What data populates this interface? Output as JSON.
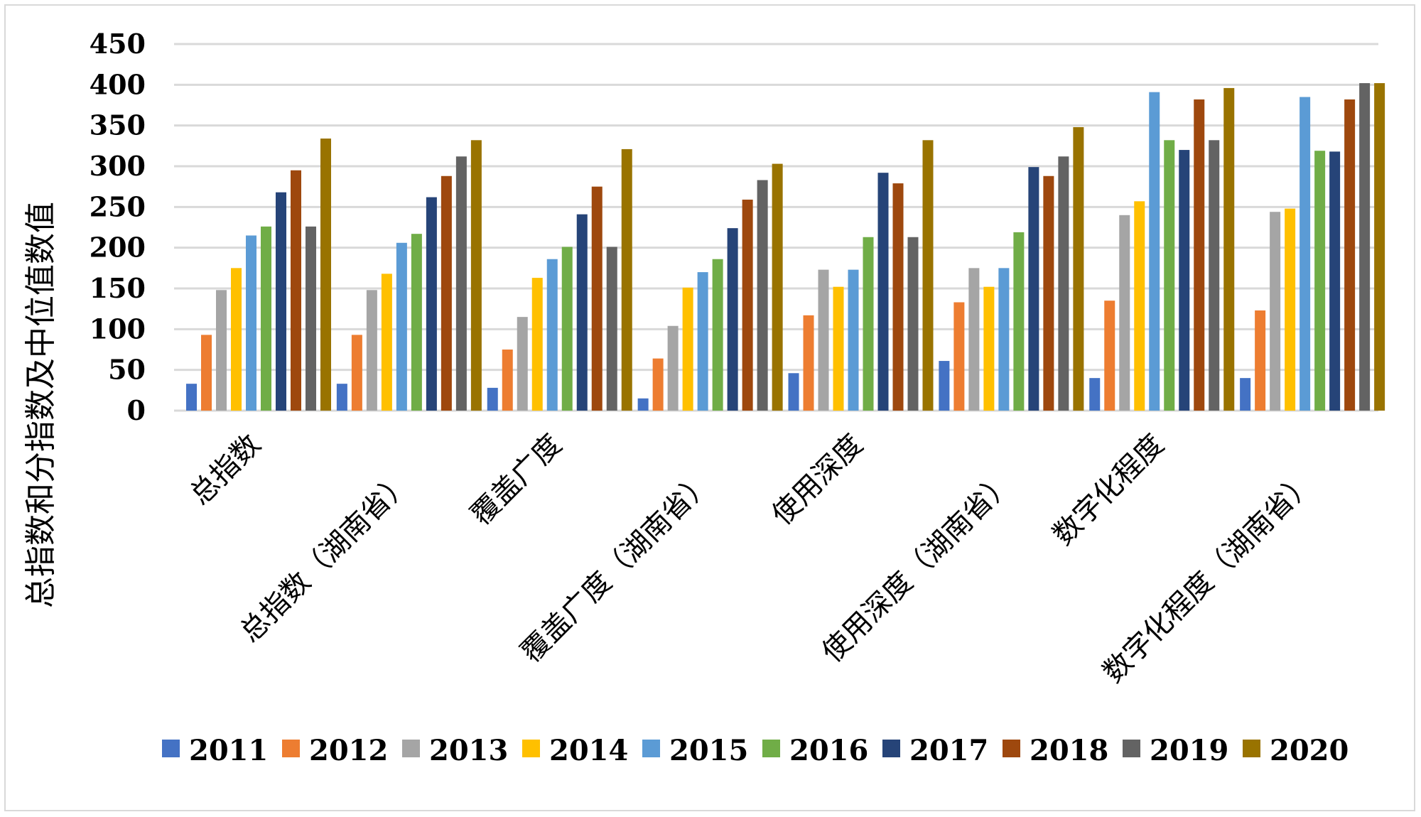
{
  "chart_data": {
    "type": "bar",
    "title": "",
    "xlabel": "",
    "ylabel": "总指数和分指数及中位值数值",
    "ylim": [
      0,
      450
    ],
    "yticks": [
      0,
      50,
      100,
      150,
      200,
      250,
      300,
      350,
      400,
      450
    ],
    "grid": true,
    "legend_position": "bottom",
    "categories": [
      "总指数",
      "总指数（湖南省）",
      "覆盖广度",
      "覆盖广度（湖南省）",
      "使用深度",
      "使用深度（湖南省）",
      "数字化程度",
      "数字化程度（湖南省）"
    ],
    "series": [
      {
        "name": "2011",
        "color": "#4472C4",
        "values": [
          33,
          33,
          28,
          15,
          46,
          61,
          40,
          40
        ]
      },
      {
        "name": "2012",
        "color": "#ED7D31",
        "values": [
          93,
          93,
          75,
          64,
          117,
          133,
          135,
          123
        ]
      },
      {
        "name": "2013",
        "color": "#A5A5A5",
        "values": [
          148,
          148,
          115,
          104,
          173,
          175,
          240,
          244
        ]
      },
      {
        "name": "2014",
        "color": "#FFC000",
        "values": [
          175,
          168,
          163,
          151,
          152,
          152,
          257,
          248
        ]
      },
      {
        "name": "2015",
        "color": "#5B9BD5",
        "values": [
          215,
          206,
          186,
          170,
          173,
          175,
          391,
          385
        ]
      },
      {
        "name": "2016",
        "color": "#70AD47",
        "values": [
          226,
          217,
          201,
          186,
          213,
          219,
          332,
          319
        ]
      },
      {
        "name": "2017",
        "color": "#264478",
        "values": [
          268,
          262,
          241,
          224,
          292,
          299,
          320,
          318
        ]
      },
      {
        "name": "2018",
        "color": "#9E480E",
        "values": [
          295,
          288,
          275,
          259,
          279,
          288,
          382,
          382
        ]
      },
      {
        "name": "2019",
        "color": "#636363",
        "values": [
          226,
          312,
          201,
          283,
          213,
          312,
          332,
          402
        ]
      },
      {
        "name": "2020",
        "color": "#997300",
        "values": [
          334,
          332,
          321,
          303,
          332,
          348,
          396,
          402
        ]
      }
    ]
  }
}
